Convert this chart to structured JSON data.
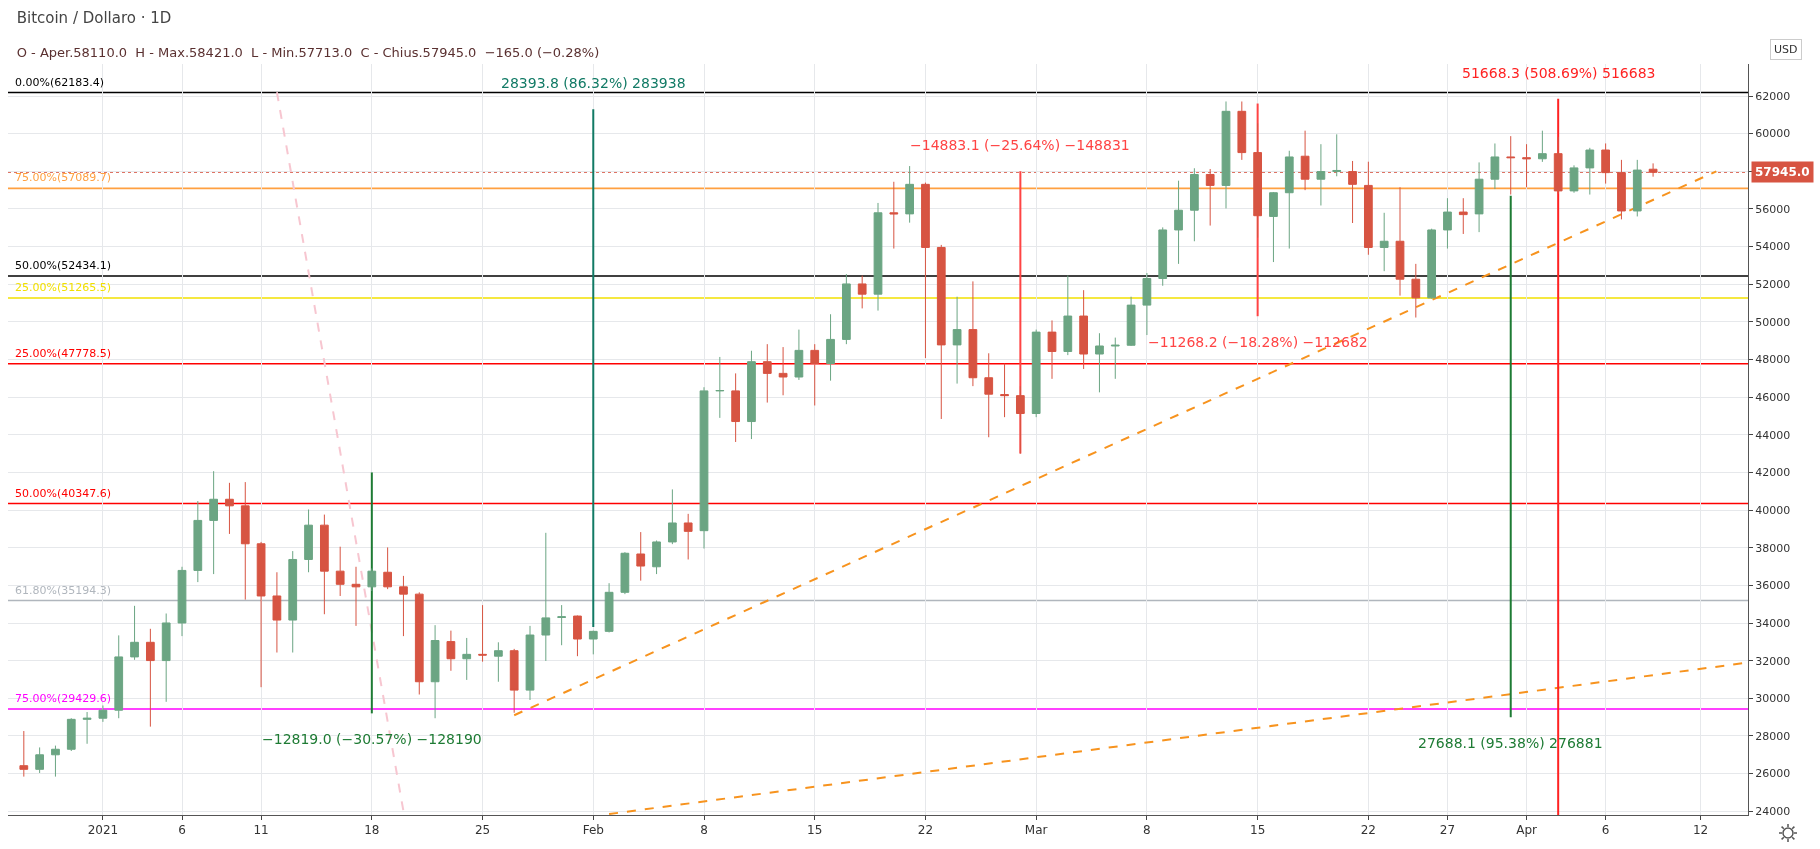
{
  "chart_data": {
    "type": "candlestick",
    "title": "Bitcoin / Dollaro · 1D",
    "subtitle": "O - Aper.58110.0  H - Max.58421.0  L - Min.57713.0  C - Chius.57945.0  −165.0 (−0.28%)",
    "ylabel": "USD",
    "xlim": [
      "2020-12-26",
      "2021-04-15"
    ],
    "xticks": [
      {
        "value": "2021-01-01",
        "label": "2021"
      },
      {
        "value": "2021-01-06",
        "label": "6"
      },
      {
        "value": "2021-01-11",
        "label": "11"
      },
      {
        "value": "2021-01-18",
        "label": "18"
      },
      {
        "value": "2021-01-25",
        "label": "25"
      },
      {
        "value": "2021-02-01",
        "label": "Feb"
      },
      {
        "value": "2021-02-08",
        "label": "8"
      },
      {
        "value": "2021-02-15",
        "label": "15"
      },
      {
        "value": "2021-02-22",
        "label": "22"
      },
      {
        "value": "2021-03-01",
        "label": "Mar"
      },
      {
        "value": "2021-03-08",
        "label": "8"
      },
      {
        "value": "2021-03-15",
        "label": "15"
      },
      {
        "value": "2021-03-22",
        "label": "22"
      },
      {
        "value": "2021-03-27",
        "label": "27"
      },
      {
        "value": "2021-04-01",
        "label": "Apr"
      },
      {
        "value": "2021-04-06",
        "label": "6"
      },
      {
        "value": "2021-04-12",
        "label": "12"
      }
    ],
    "ylim": [
      23800,
      63700
    ],
    "yticks": [
      24000,
      26000,
      28000,
      30000,
      32000,
      34000,
      36000,
      38000,
      40000,
      42000,
      44000,
      46000,
      48000,
      50000,
      52000,
      54000,
      56000,
      {
        "value": 58000,
        "label": null
      },
      60000,
      62000
    ],
    "grid": true,
    "series": [
      {
        "x": [
          "2020-12-27",
          "2020-12-28",
          "2020-12-29",
          "2020-12-30",
          "2020-12-31",
          "2021-01-01",
          "2021-01-02",
          "2021-01-03",
          "2021-01-04",
          "2021-01-05",
          "2021-01-06",
          "2021-01-07",
          "2021-01-08",
          "2021-01-09",
          "2021-01-10",
          "2021-01-11",
          "2021-01-12",
          "2021-01-13",
          "2021-01-14",
          "2021-01-15",
          "2021-01-16",
          "2021-01-17",
          "2021-01-18",
          "2021-01-19",
          "2021-01-20",
          "2021-01-21",
          "2021-01-22",
          "2021-01-23",
          "2021-01-24",
          "2021-01-25",
          "2021-01-26",
          "2021-01-27",
          "2021-01-28",
          "2021-01-29",
          "2021-01-30",
          "2021-01-31",
          "2021-02-01",
          "2021-02-02",
          "2021-02-03",
          "2021-02-04",
          "2021-02-05",
          "2021-02-06",
          "2021-02-07",
          "2021-02-08",
          "2021-02-09",
          "2021-02-10",
          "2021-02-11",
          "2021-02-12",
          "2021-02-13",
          "2021-02-14",
          "2021-02-15",
          "2021-02-16",
          "2021-02-17",
          "2021-02-18",
          "2021-02-19",
          "2021-02-20",
          "2021-02-21",
          "2021-02-22",
          "2021-02-23",
          "2021-02-24",
          "2021-02-25",
          "2021-02-26",
          "2021-02-27",
          "2021-02-28",
          "2021-03-01",
          "2021-03-02",
          "2021-03-03",
          "2021-03-04",
          "2021-03-05",
          "2021-03-06",
          "2021-03-07",
          "2021-03-08",
          "2021-03-09",
          "2021-03-10",
          "2021-03-11",
          "2021-03-12",
          "2021-03-13",
          "2021-03-14",
          "2021-03-15",
          "2021-03-16",
          "2021-03-17",
          "2021-03-18",
          "2021-03-19",
          "2021-03-20",
          "2021-03-21",
          "2021-03-22",
          "2021-03-23",
          "2021-03-24",
          "2021-03-25",
          "2021-03-26",
          "2021-03-27",
          "2021-03-28",
          "2021-03-29",
          "2021-03-30",
          "2021-03-31",
          "2021-04-01",
          "2021-04-02",
          "2021-04-03",
          "2021-04-04",
          "2021-04-05",
          "2021-04-06",
          "2021-04-07",
          "2021-04-08",
          "2021-04-09"
        ],
        "ohlc": [
          [
            26420,
            28262,
            25839,
            26227
          ],
          [
            26227,
            27390,
            26033,
            26999
          ],
          [
            26999,
            27487,
            25839,
            27293
          ],
          [
            27293,
            28942,
            27200,
            28883
          ],
          [
            28883,
            29271,
            27584,
            28942
          ],
          [
            28942,
            29620,
            28748,
            29368
          ],
          [
            29368,
            33343,
            28942,
            32199
          ],
          [
            32199,
            34913,
            32044,
            32975
          ],
          [
            32975,
            33692,
            28495,
            32005
          ],
          [
            32005,
            34506,
            29814,
            34002
          ],
          [
            34002,
            36988,
            33304,
            36794
          ],
          [
            36794,
            40479,
            36174,
            39451
          ],
          [
            39451,
            42068,
            36600,
            40575
          ],
          [
            40575,
            41448,
            38733,
            40226
          ],
          [
            40226,
            41487,
            35243,
            38210
          ],
          [
            38210,
            38307,
            30590,
            35437
          ],
          [
            35437,
            36697,
            32432,
            34157
          ],
          [
            34157,
            37822,
            32432,
            37376
          ],
          [
            37376,
            40033,
            36697,
            39199
          ],
          [
            39199,
            39761,
            34467,
            36755
          ],
          [
            36755,
            38055,
            35437,
            36057
          ],
          [
            36057,
            36988,
            33847,
            35922
          ],
          [
            35922,
            36900,
            35700,
            36755
          ],
          [
            36697,
            38016,
            35800,
            35922
          ],
          [
            35922,
            36503,
            33304,
            35534
          ],
          [
            35534,
            35631,
            30202,
            30880
          ],
          [
            30880,
            33886,
            28942,
            33071
          ],
          [
            33013,
            33595,
            31462,
            32102
          ],
          [
            32102,
            33207,
            30977,
            32335
          ],
          [
            32335,
            34952,
            31947,
            32296
          ],
          [
            32238,
            32975,
            30880,
            32529
          ],
          [
            32529,
            32626,
            29232,
            30435
          ],
          [
            30435,
            33847,
            29911,
            33362
          ],
          [
            33362,
            38792,
            31985,
            34273
          ],
          [
            34293,
            34952,
            32820,
            34332
          ],
          [
            34370,
            34400,
            32238,
            33149
          ],
          [
            33149,
            33595,
            32335,
            33556
          ],
          [
            33556,
            36116,
            33498,
            35631
          ],
          [
            35631,
            37764,
            35534,
            37706
          ],
          [
            37667,
            38831,
            36251,
            37027
          ],
          [
            36988,
            38384,
            36600,
            38307
          ],
          [
            38307,
            41099,
            38190,
            39315
          ],
          [
            39315,
            39800,
            37376,
            38869
          ],
          [
            38907,
            46527,
            37958,
            46333
          ],
          [
            46333,
            48136,
            44898,
            46352
          ],
          [
            46333,
            47263,
            43618,
            44704
          ],
          [
            44704,
            48466,
            43773,
            47884
          ],
          [
            47884,
            48815,
            45712,
            47263
          ],
          [
            47263,
            48660,
            46100,
            47070
          ],
          [
            47070,
            49590,
            46914,
            48485
          ],
          [
            48485,
            48815,
            45557,
            47787
          ],
          [
            47787,
            50405,
            46876,
            49067
          ],
          [
            49067,
            52537,
            48815,
            52014
          ],
          [
            52014,
            52460,
            50715,
            51471
          ],
          [
            51471,
            56318,
            50599,
            55795
          ],
          [
            55795,
            57443,
            53895,
            55737
          ],
          [
            55737,
            58277,
            55271,
            57307
          ],
          [
            57307,
            57400,
            48078,
            53953
          ],
          [
            53953,
            54089,
            44840,
            48776
          ],
          [
            48776,
            51335,
            46721,
            49590
          ],
          [
            49590,
            52150,
            46585,
            47031
          ],
          [
            47031,
            48330,
            43870,
            46158
          ],
          [
            46139,
            47787,
            44937,
            46081
          ],
          [
            46081,
            46585,
            42998,
            45131
          ],
          [
            45131,
            49590,
            44937,
            49455
          ],
          [
            49455,
            50075,
            46973,
            48427
          ],
          [
            48427,
            52460,
            48233,
            50308
          ],
          [
            50308,
            51684,
            47496,
            48291
          ],
          [
            48291,
            49397,
            46255,
            48718
          ],
          [
            48718,
            49164,
            46973,
            48757
          ],
          [
            48757,
            51335,
            48718,
            50890
          ],
          [
            50890,
            52595,
            49300,
            52305
          ],
          [
            52305,
            55019,
            51917,
            54884
          ],
          [
            54884,
            57501,
            53081,
            55931
          ],
          [
            55931,
            58161,
            54283,
            57831
          ],
          [
            57831,
            58122,
            55116,
            57249
          ],
          [
            57249,
            61709,
            56027,
            61186
          ],
          [
            61186,
            61709,
            58607,
            58994
          ],
          [
            58994,
            60546,
            54477,
            55640
          ],
          [
            55601,
            56900,
            53178,
            56861
          ],
          [
            56861,
            59091,
            53895,
            58761
          ],
          [
            58800,
            60158,
            56997,
            57579
          ],
          [
            57579,
            59440,
            56183,
            57986
          ],
          [
            57986,
            59964,
            57734,
            58044
          ],
          [
            57986,
            58548,
            55252,
            57307
          ],
          [
            57249,
            58509,
            53565,
            53953
          ],
          [
            53953,
            55795,
            52693,
            54283
          ],
          [
            54283,
            57152,
            51394,
            52266
          ],
          [
            52266,
            53081,
            50230,
            51277
          ],
          [
            51277,
            54950,
            51238,
            54884
          ],
          [
            54884,
            56570,
            53895,
            55834
          ],
          [
            55834,
            56570,
            54670,
            55698
          ],
          [
            55737,
            58471,
            54767,
            57579
          ],
          [
            57579,
            59478,
            57055,
            58761
          ],
          [
            58761,
            59867,
            56764,
            58723
          ],
          [
            58723,
            59440,
            57152,
            58665
          ],
          [
            58665,
            60158,
            58500,
            58936
          ],
          [
            58936,
            59828,
            56803,
            56958
          ],
          [
            56958,
            58316,
            56861,
            58180
          ],
          [
            58180,
            59246,
            56764,
            59130
          ],
          [
            59130,
            59479,
            57346,
            57928
          ],
          [
            57928,
            58607,
            55446,
            55892
          ],
          [
            55892,
            58607,
            55601,
            58064
          ],
          [
            58110,
            58421,
            57713,
            57945
          ]
        ],
        "colors": [
          "#d75442",
          "#6ba583",
          "#6ba583",
          "#6ba583",
          "#6ba583",
          "#6ba583",
          "#6ba583",
          "#6ba583",
          "#d75442",
          "#6ba583",
          "#6ba583",
          "#6ba583",
          "#6ba583",
          "#d75442",
          "#d75442",
          "#d75442",
          "#d75442",
          "#6ba583",
          "#6ba583",
          "#d75442",
          "#d75442",
          "#d75442",
          "#6ba583",
          "#d75442",
          "#d75442",
          "#d75442",
          "#6ba583",
          "#d75442",
          "#6ba583",
          "#d75442",
          "#6ba583",
          "#d75442",
          "#6ba583",
          "#6ba583",
          "#6ba583",
          "#d75442",
          "#6ba583",
          "#6ba583",
          "#6ba583",
          "#d75442",
          "#6ba583",
          "#6ba583",
          "#d75442",
          "#6ba583",
          "#6ba583",
          "#d75442",
          "#6ba583",
          "#d75442",
          "#d75442",
          "#6ba583",
          "#d75442",
          "#6ba583",
          "#6ba583",
          "#d75442",
          "#6ba583",
          "#d75442",
          "#6ba583",
          "#d75442",
          "#d75442",
          "#6ba583",
          "#d75442",
          "#d75442",
          "#d75442",
          "#d75442",
          "#6ba583",
          "#d75442",
          "#6ba583",
          "#d75442",
          "#6ba583",
          "#6ba583",
          "#6ba583",
          "#6ba583",
          "#6ba583",
          "#6ba583",
          "#6ba583",
          "#d75442",
          "#6ba583",
          "#d75442",
          "#d75442",
          "#6ba583",
          "#6ba583",
          "#d75442",
          "#6ba583",
          "#6ba583",
          "#d75442",
          "#d75442",
          "#6ba583",
          "#d75442",
          "#d75442",
          "#6ba583",
          "#6ba583",
          "#d75442",
          "#6ba583",
          "#6ba583",
          "#d75442",
          "#d75442",
          "#6ba583",
          "#d75442",
          "#6ba583",
          "#6ba583",
          "#d75442",
          "#d75442",
          "#6ba583",
          "#d75442"
        ]
      },
      {
        "type": "line",
        "x": [
          "2021-01-27",
          "2021-04-13"
        ],
        "values": [
          29100,
          58000
        ],
        "color": "#f7931e",
        "line_style": "dashed"
      },
      {
        "type": "line",
        "x": [
          "2021-02-02",
          "2021-04-15"
        ],
        "values": [
          23850,
          31900
        ],
        "color": "#f7931e",
        "line_style": "dashed"
      },
      {
        "type": "line",
        "x": [
          "2021-01-12",
          "2021-01-20"
        ],
        "values": [
          62200,
          24000
        ],
        "color": "#f7c6d0",
        "line_style": "dashed"
      },
      {
        "type": "line",
        "x": [
          "2021-01-18",
          "2021-01-18"
        ],
        "values": [
          42000,
          29200
        ],
        "color": "#1e7b34"
      },
      {
        "type": "line",
        "x": [
          "2021-02-01",
          "2021-02-01"
        ],
        "values": [
          33790,
          61300
        ],
        "color": "#117a65"
      },
      {
        "type": "line",
        "x": [
          "2021-02-28",
          "2021-02-28"
        ],
        "values": [
          58000,
          43000
        ],
        "color": "#ff4444"
      },
      {
        "type": "line",
        "x": [
          "2021-03-15",
          "2021-03-15"
        ],
        "values": [
          61600,
          50300
        ],
        "color": "#ff4444"
      },
      {
        "type": "line",
        "x": [
          "2021-03-31",
          "2021-03-31"
        ],
        "values": [
          29000,
          56700
        ],
        "color": "#1e7b34"
      },
      {
        "type": "line",
        "x": [
          "2021-04-03",
          "2021-04-03"
        ],
        "values": [
          23800,
          61850
        ],
        "color": "#ff2222"
      }
    ],
    "ref_lines": [
      {
        "axis": "y",
        "value": 62183.4,
        "label": "0.00%(62183.4)",
        "color": "#000000"
      },
      {
        "axis": "y",
        "value": 57089.7,
        "label": "75.00%(57089.7)",
        "color": "#ffa040"
      },
      {
        "axis": "y",
        "value": 52434.1,
        "label": "50.00%(52434.1)",
        "color": "#000000"
      },
      {
        "axis": "y",
        "value": 51265.5,
        "label": "25.00%(51265.5)",
        "color": "#f2e000"
      },
      {
        "axis": "y",
        "value": 47778.5,
        "label": "25.00%(47778.5)",
        "color": "#ff0000"
      },
      {
        "axis": "y",
        "value": 40347.6,
        "label": "50.00%(40347.6)",
        "color": "#ff0000"
      },
      {
        "axis": "y",
        "value": 35194.3,
        "label": "61.80%(35194.3)",
        "color": "#b0b6bd"
      },
      {
        "axis": "y",
        "value": 29429.6,
        "label": "75.00%(29429.6)",
        "color": "#ff00ff"
      },
      {
        "axis": "y",
        "value": 57945,
        "label": "57945.0",
        "color": "#d75442",
        "line_style": "dotted"
      }
    ],
    "annotations": [
      {
        "text": "−12819.0 (−30.57%) −128190",
        "x": "2021-01-18",
        "y": 29200
      },
      {
        "text": "28393.8 (86.32%) 283938",
        "x": "2021-02-01",
        "y": 61300
      },
      {
        "text": "−14883.1 (−25.64%) −148831",
        "x": "2021-02-28",
        "y": 58000
      },
      {
        "text": "−11268.2 (−18.28%) −112682",
        "x": "2021-03-15",
        "y": 50300
      },
      {
        "text": "27688.1 (95.38%) 276881",
        "x": "2021-03-31",
        "y": 29000
      },
      {
        "text": "51668.3 (508.69%) 516683",
        "x": "2021-04-03",
        "y": 61850
      }
    ]
  }
}
